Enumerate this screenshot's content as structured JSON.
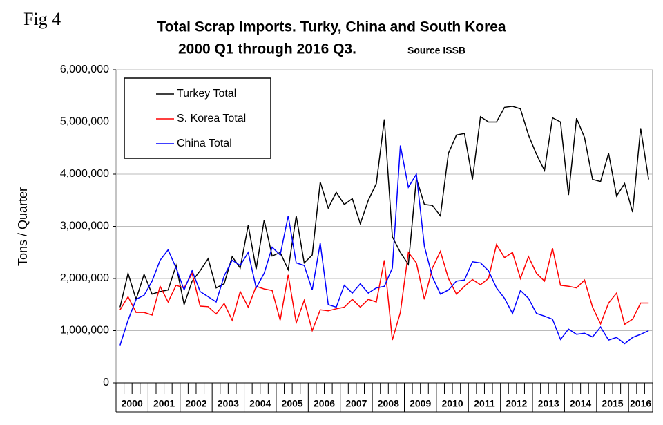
{
  "fig_label": "Fig 4",
  "chart_data": {
    "type": "line",
    "title": "Total Scrap Imports. Turky, China and South Korea",
    "subtitle": "2000 Q1 through 2016 Q3.",
    "source": "Source ISSB",
    "y_label": "Tons / Quarter",
    "categories": [
      "2000",
      null,
      null,
      null,
      "2001",
      null,
      null,
      null,
      "2002",
      null,
      null,
      null,
      "2003",
      null,
      null,
      null,
      "2004",
      null,
      null,
      null,
      "2005",
      null,
      null,
      null,
      "2006",
      null,
      null,
      null,
      "2007",
      null,
      null,
      null,
      "2008",
      null,
      null,
      null,
      "2009",
      null,
      null,
      null,
      "2010",
      null,
      null,
      null,
      "2011",
      null,
      null,
      null,
      "2012",
      null,
      null,
      null,
      "2013",
      null,
      null,
      null,
      "2014",
      null,
      null,
      null,
      "2015",
      null,
      null,
      null,
      "2016",
      null,
      null
    ],
    "series": [
      {
        "name": "Turkey Total",
        "color": "#000000",
        "values": [
          1450000,
          2100000,
          1600000,
          2080000,
          1700000,
          1750000,
          1780000,
          2250000,
          1500000,
          1950000,
          2150000,
          2380000,
          1820000,
          1900000,
          2420000,
          2200000,
          3020000,
          2180000,
          3120000,
          2430000,
          2500000,
          2170000,
          3200000,
          2300000,
          2450000,
          3850000,
          3350000,
          3650000,
          3420000,
          3530000,
          3050000,
          3500000,
          3820000,
          5050000,
          2800000,
          2500000,
          2270000,
          3920000,
          3420000,
          3400000,
          3200000,
          4400000,
          4750000,
          4780000,
          3900000,
          5100000,
          5000000,
          5000000,
          5280000,
          5300000,
          5250000,
          4750000,
          4380000,
          4070000,
          5080000,
          5000000,
          3600000,
          5070000,
          4700000,
          3900000,
          3860000,
          4400000,
          3580000,
          3820000,
          3270000,
          4880000,
          3900000
        ]
      },
      {
        "name": "S. Korea Total",
        "color": "#ff0000",
        "values": [
          1400000,
          1650000,
          1350000,
          1350000,
          1300000,
          1850000,
          1550000,
          1870000,
          1820000,
          2100000,
          1470000,
          1460000,
          1320000,
          1520000,
          1200000,
          1750000,
          1450000,
          1850000,
          1800000,
          1770000,
          1200000,
          2070000,
          1150000,
          1580000,
          1000000,
          1400000,
          1380000,
          1420000,
          1450000,
          1600000,
          1450000,
          1600000,
          1550000,
          2350000,
          820000,
          1350000,
          2500000,
          2300000,
          1600000,
          2200000,
          2520000,
          2000000,
          1700000,
          1850000,
          1980000,
          1880000,
          2000000,
          2650000,
          2400000,
          2500000,
          2000000,
          2420000,
          2100000,
          1950000,
          2580000,
          1870000,
          1850000,
          1820000,
          1970000,
          1450000,
          1130000,
          1530000,
          1720000,
          1120000,
          1220000,
          1530000,
          1530000
        ]
      },
      {
        "name": "China Total",
        "color": "#0000ff",
        "values": [
          720000,
          1200000,
          1600000,
          1680000,
          1950000,
          2350000,
          2550000,
          2200000,
          1780000,
          2150000,
          1750000,
          1650000,
          1550000,
          2050000,
          2350000,
          2250000,
          2500000,
          1820000,
          2100000,
          2600000,
          2450000,
          3200000,
          2300000,
          2250000,
          1780000,
          2680000,
          1500000,
          1450000,
          1870000,
          1720000,
          1900000,
          1720000,
          1820000,
          1850000,
          2200000,
          4550000,
          3750000,
          4000000,
          2620000,
          2030000,
          1700000,
          1780000,
          1950000,
          1970000,
          2320000,
          2300000,
          2150000,
          1820000,
          1620000,
          1330000,
          1770000,
          1620000,
          1330000,
          1280000,
          1220000,
          830000,
          1030000,
          930000,
          950000,
          880000,
          1070000,
          820000,
          870000,
          750000,
          870000,
          930000,
          1000000
        ]
      }
    ],
    "ylim": [
      0,
      6000000
    ],
    "yticks": [
      0,
      {
        "value": 1000000,
        "label": "1,000,000"
      },
      {
        "value": 2000000,
        "label": "2,000,000"
      },
      {
        "value": 3000000,
        "label": "3,000,000"
      },
      {
        "value": 4000000,
        "label": "4,000,000"
      },
      {
        "value": 5000000,
        "label": "5,000,000"
      },
      {
        "value": 6000000,
        "label": "6,000,000"
      }
    ],
    "grid": true,
    "legend": "top-left"
  }
}
